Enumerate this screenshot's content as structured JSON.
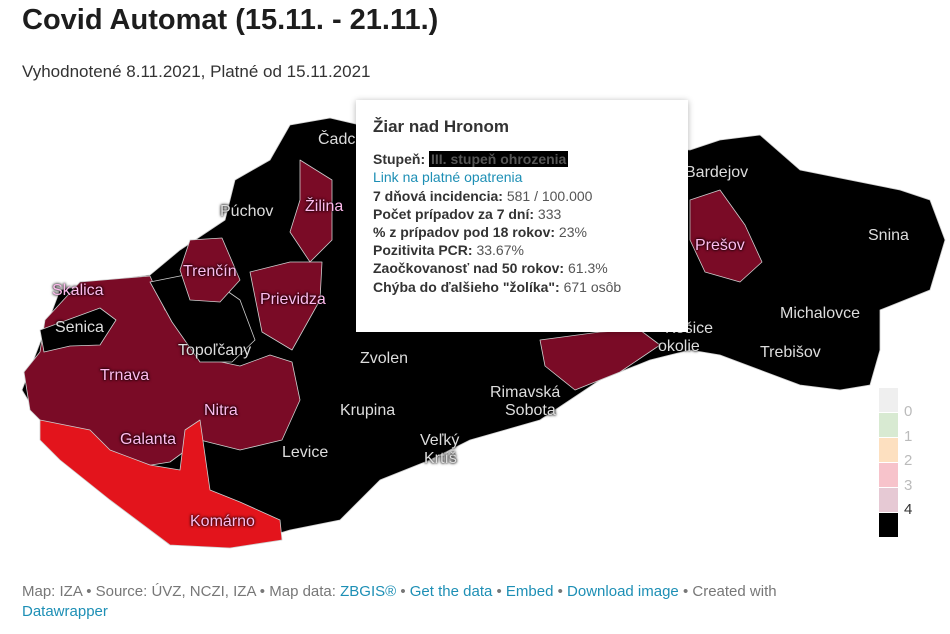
{
  "header": {
    "title": "Covid Automat (15.11. - 21.11.)",
    "subtitle": "Vyhodnotené 8.11.2021, Platné od 15.11.2021"
  },
  "map": {
    "colors": {
      "level4": "#000000",
      "level3": "#7a0b26",
      "level2": "#e3141c",
      "border": "#cfcfcf"
    },
    "labels": [
      "Čadca",
      "Žilina",
      "Púchov",
      "Trenčín",
      "Skalica",
      "Senica",
      "Prievidza",
      "Topoľčany",
      "Zvolen",
      "Trnava",
      "Nitra",
      "Krupina",
      "Galanta",
      "Levice",
      "Veľký",
      "Krtíš",
      "Rimavská",
      "Sobota",
      "Komárno",
      "Bardejov",
      "Prešov",
      "Snina",
      "Michalovce",
      "Košice",
      "okolie",
      "Trebišov"
    ]
  },
  "tooltip": {
    "title": "Žiar nad Hronom",
    "stupen_label": "Stupeň:",
    "stupen_value": "III. stupeň ohrozenia",
    "link": "Link na platné opatrenia",
    "rows": [
      {
        "label": "7 dňová incidencia:",
        "value": "581 / 100.000"
      },
      {
        "label": "Počet prípadov za 7 dní:",
        "value": "333"
      },
      {
        "label": "% z prípadov pod 18 rokov:",
        "value": "23%"
      },
      {
        "label": "Pozitivita PCR:",
        "value": "33.67%"
      },
      {
        "label": "Zaočkovanosť nad 50 rokov:",
        "value": "61.3%"
      },
      {
        "label": "Chýba do ďalšieho \"žolíka\":",
        "value": "671 osôb"
      }
    ]
  },
  "legend": {
    "colors": [
      "#efefef",
      "#d8ead2",
      "#fde0c0",
      "#f7c3cb",
      "#e6c9d4",
      "#000000"
    ],
    "labels": [
      "0",
      "1",
      "2",
      "3",
      "4"
    ]
  },
  "footer": {
    "text1": "Map: IZA • Source: ÚVZ, NCZI, IZA • Map data: ",
    "zbgis": "ZBGIS®",
    "sep1": " • ",
    "get_data": "Get the data",
    "sep2": " • ",
    "embed": "Embed",
    "sep3": " • ",
    "download": "Download image",
    "text2": " • Created with ",
    "datawrapper": "Datawrapper"
  }
}
